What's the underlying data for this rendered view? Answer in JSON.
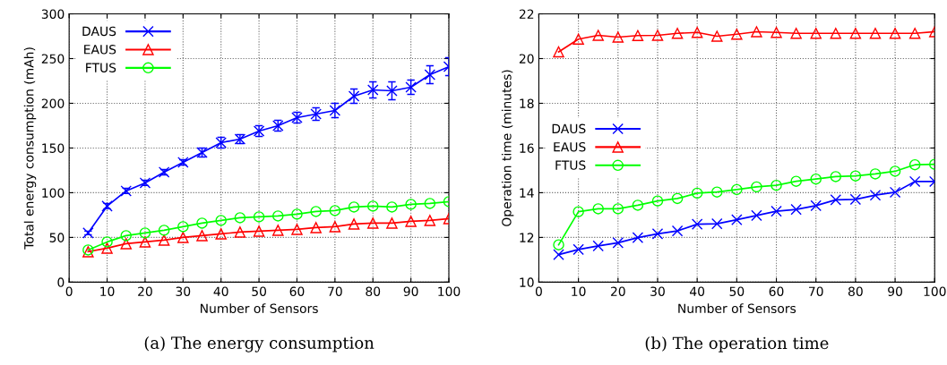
{
  "chart_data": [
    {
      "type": "line",
      "xlabel": "Number of Sensors",
      "ylabel": "Total energy consumption (mAh)",
      "annotations": [
        "(a) The energy consumption"
      ],
      "x": [
        5,
        10,
        15,
        20,
        25,
        30,
        35,
        40,
        45,
        50,
        55,
        60,
        65,
        70,
        75,
        80,
        85,
        90,
        95,
        100
      ],
      "series": [
        {
          "name": "DAUS",
          "color": "#0000ff",
          "marker": "cross",
          "values": [
            55,
            85,
            102,
            111,
            123,
            134,
            145,
            156,
            160,
            169,
            175,
            184,
            188,
            192,
            208,
            215,
            214,
            218,
            232,
            241
          ],
          "errors": [
            2,
            3,
            3,
            3,
            3,
            3,
            5,
            6,
            5,
            6,
            6,
            6,
            7,
            8,
            8,
            9,
            10,
            8,
            10,
            10
          ]
        },
        {
          "name": "EAUS",
          "color": "#ff0000",
          "marker": "triangle",
          "values": [
            34,
            38,
            43,
            45,
            47,
            50,
            52,
            54,
            56,
            57,
            58,
            59,
            61,
            62,
            65,
            66,
            66,
            68,
            69,
            71
          ]
        },
        {
          "name": "FTUS",
          "color": "#00ff00",
          "marker": "circle",
          "values": [
            36,
            45,
            52,
            55,
            58,
            62,
            66,
            69,
            72,
            73,
            74,
            76,
            79,
            80,
            84,
            85,
            84,
            87,
            88,
            90
          ]
        }
      ],
      "xlim": [
        0,
        100
      ],
      "xticks": [
        0,
        10,
        20,
        30,
        40,
        50,
        60,
        70,
        80,
        90,
        100
      ],
      "ylim": [
        0,
        300
      ],
      "yticks": [
        0,
        50,
        100,
        150,
        200,
        250,
        300
      ],
      "grid": true,
      "legend": "top left",
      "line_style": "solid"
    },
    {
      "type": "line",
      "xlabel": "Number of Sensors",
      "ylabel": "Operation time (minutes)",
      "annotations": [
        "(b) The operation time"
      ],
      "x": [
        5,
        10,
        15,
        20,
        25,
        30,
        35,
        40,
        45,
        50,
        55,
        60,
        65,
        70,
        75,
        80,
        85,
        90,
        95,
        100
      ],
      "series": [
        {
          "name": "DAUS",
          "color": "#0000ff",
          "marker": "cross",
          "values": [
            11.23,
            11.46,
            11.62,
            11.76,
            11.99,
            12.16,
            12.29,
            12.59,
            12.61,
            12.79,
            12.98,
            13.17,
            13.25,
            13.42,
            13.68,
            13.7,
            13.89,
            14.02,
            14.5,
            14.5
          ]
        },
        {
          "name": "EAUS",
          "color": "#ff0000",
          "marker": "triangle",
          "values": [
            20.3,
            20.87,
            21.04,
            20.96,
            21.03,
            21.04,
            21.13,
            21.17,
            21.0,
            21.09,
            21.2,
            21.17,
            21.13,
            21.13,
            21.13,
            21.13,
            21.13,
            21.13,
            21.13,
            21.2
          ]
        },
        {
          "name": "FTUS",
          "color": "#00ff00",
          "marker": "circle",
          "values": [
            11.67,
            13.15,
            13.28,
            13.28,
            13.44,
            13.63,
            13.74,
            13.98,
            14.03,
            14.14,
            14.26,
            14.33,
            14.51,
            14.61,
            14.72,
            14.75,
            14.84,
            14.96,
            15.25,
            15.27
          ]
        }
      ],
      "xlim": [
        0,
        100
      ],
      "xticks": [
        0,
        10,
        20,
        30,
        40,
        50,
        60,
        70,
        80,
        90,
        100
      ],
      "ylim": [
        10,
        22
      ],
      "yticks": [
        10,
        12,
        14,
        16,
        18,
        20,
        22
      ],
      "grid": true,
      "legend": "left",
      "line_style": "solid"
    }
  ]
}
